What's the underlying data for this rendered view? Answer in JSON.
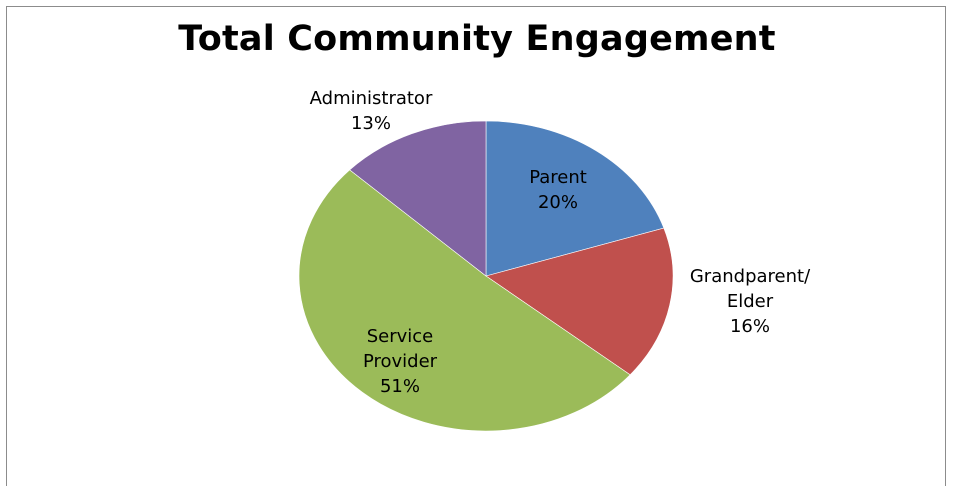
{
  "chart_data": {
    "type": "pie",
    "title": "Total Community Engagement",
    "slices": [
      {
        "label_lines": [
          "Parent"
        ],
        "percent_label": "20%",
        "value": 20,
        "color": "#4f81bd"
      },
      {
        "label_lines": [
          "Grandparent/",
          "Elder"
        ],
        "percent_label": "16%",
        "value": 16,
        "color": "#c0504d"
      },
      {
        "label_lines": [
          "Service",
          "Provider"
        ],
        "percent_label": "51%",
        "value": 51,
        "color": "#9bbb59"
      },
      {
        "label_lines": [
          "Administrator"
        ],
        "percent_label": "13%",
        "value": 13,
        "color": "#8064a2"
      }
    ],
    "legend": false
  }
}
